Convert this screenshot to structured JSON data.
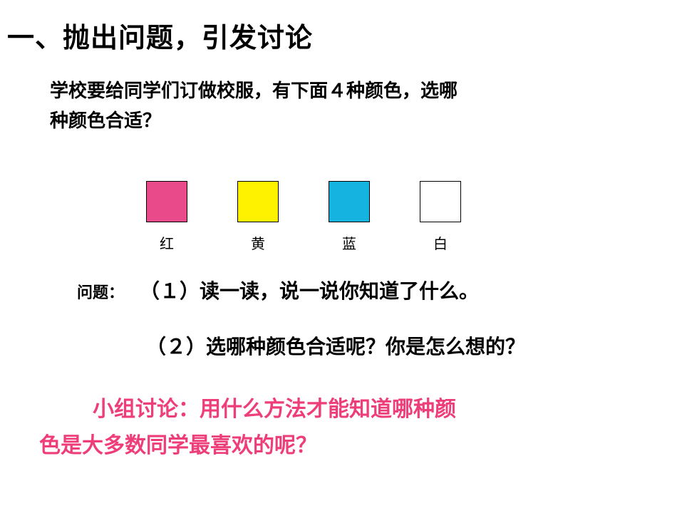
{
  "title": "一、抛出问题，引发讨论",
  "intro_line1": "学校要给同学们订做校服，有下面４种颜色，选哪",
  "intro_line2": "种颜色合适？",
  "swatches": [
    {
      "label": "红",
      "color": "#e94b8a"
    },
    {
      "label": "黄",
      "color": "#fef200"
    },
    {
      "label": "蓝",
      "color": "#14b3e0"
    },
    {
      "label": "白",
      "color": "#ffffff"
    }
  ],
  "question_label": "问题：",
  "q1": "（１）读一读，说一说你知道了什么。",
  "q2": "（２）选哪种颜色合适呢？你是怎么想的？",
  "discussion_line1": "小组讨论：用什么方法才能知道哪种颜",
  "discussion_line2": "色是大多数同学最喜欢的呢？",
  "discussion_color": "#ee3e7a",
  "swatch_border": "#000000",
  "background": "#ffffff"
}
